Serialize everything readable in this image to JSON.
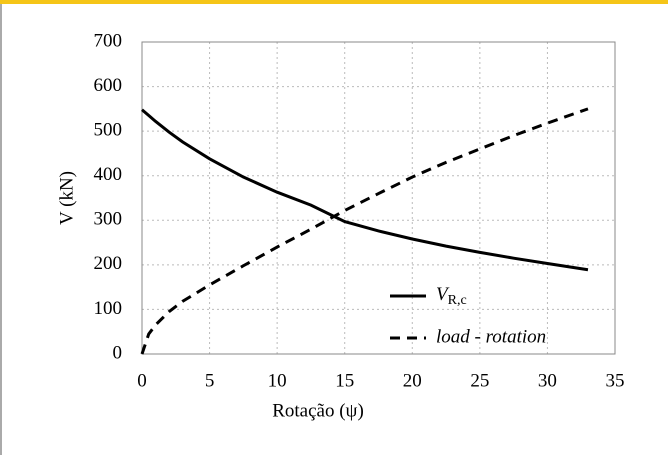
{
  "chart_data": {
    "type": "line",
    "x_label": "Rotação (ψ)",
    "y_label": "V (kN)",
    "x": [
      0,
      0.5,
      1,
      2,
      3,
      5,
      7.5,
      10,
      12.5,
      15,
      17.5,
      20,
      22.5,
      25,
      27.5,
      30,
      33
    ],
    "series": [
      {
        "name": "VR,c",
        "color": "#000000",
        "dash": "solid",
        "values": [
          548,
          535,
          522,
          498,
          476,
          438,
          397,
          363,
          334,
          297,
          276,
          258,
          242,
          228,
          215,
          203,
          189
        ]
      },
      {
        "name": "load - rotation",
        "color": "#000000",
        "dash": "dashed",
        "values": [
          0,
          45,
          65,
          95,
          118,
          155,
          198,
          240,
          280,
          322,
          360,
          397,
          430,
          460,
          490,
          518,
          550
        ]
      }
    ],
    "xlim": [
      0,
      35
    ],
    "xticks": [
      0,
      5,
      10,
      15,
      20,
      25,
      30,
      35
    ],
    "ylim": [
      0,
      700
    ],
    "yticks": [
      0,
      100,
      200,
      300,
      400,
      500,
      600,
      700
    ],
    "grid": true,
    "legend": "lower right"
  }
}
